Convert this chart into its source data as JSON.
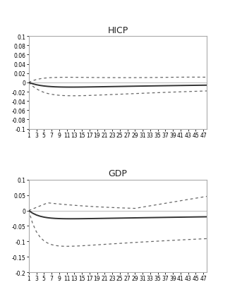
{
  "hicp_title": "HICP",
  "gdp_title": "GDP",
  "hicp_ylim": [
    -0.1,
    0.1
  ],
  "hicp_yticks": [
    -0.1,
    -0.08,
    -0.06,
    -0.04,
    -0.02,
    0,
    0.02,
    0.04,
    0.06,
    0.08,
    0.1
  ],
  "gdp_ylim": [
    -0.2,
    0.1
  ],
  "gdp_yticks": [
    -0.2,
    -0.15,
    -0.1,
    -0.05,
    0,
    0.05,
    0.1
  ],
  "xticks": [
    1,
    3,
    5,
    7,
    9,
    11,
    13,
    15,
    17,
    19,
    21,
    23,
    25,
    27,
    29,
    31,
    33,
    35,
    37,
    39,
    41,
    43,
    45,
    47
  ],
  "xtick_labels": [
    "1",
    "3",
    "5",
    "7",
    "9",
    "11",
    "13",
    "15",
    "17",
    "19",
    "21",
    "23",
    "25",
    "27",
    "29",
    "31",
    "33",
    "35",
    "37",
    "39",
    "41",
    "43",
    "45",
    "47"
  ],
  "line_color": "#333333",
  "dot_color": "#666666",
  "zero_line_color": "#bbbbbb",
  "background_color": "#ffffff",
  "border_color": "#aaaaaa",
  "title_fontsize": 9,
  "tick_fontsize": 5.5
}
